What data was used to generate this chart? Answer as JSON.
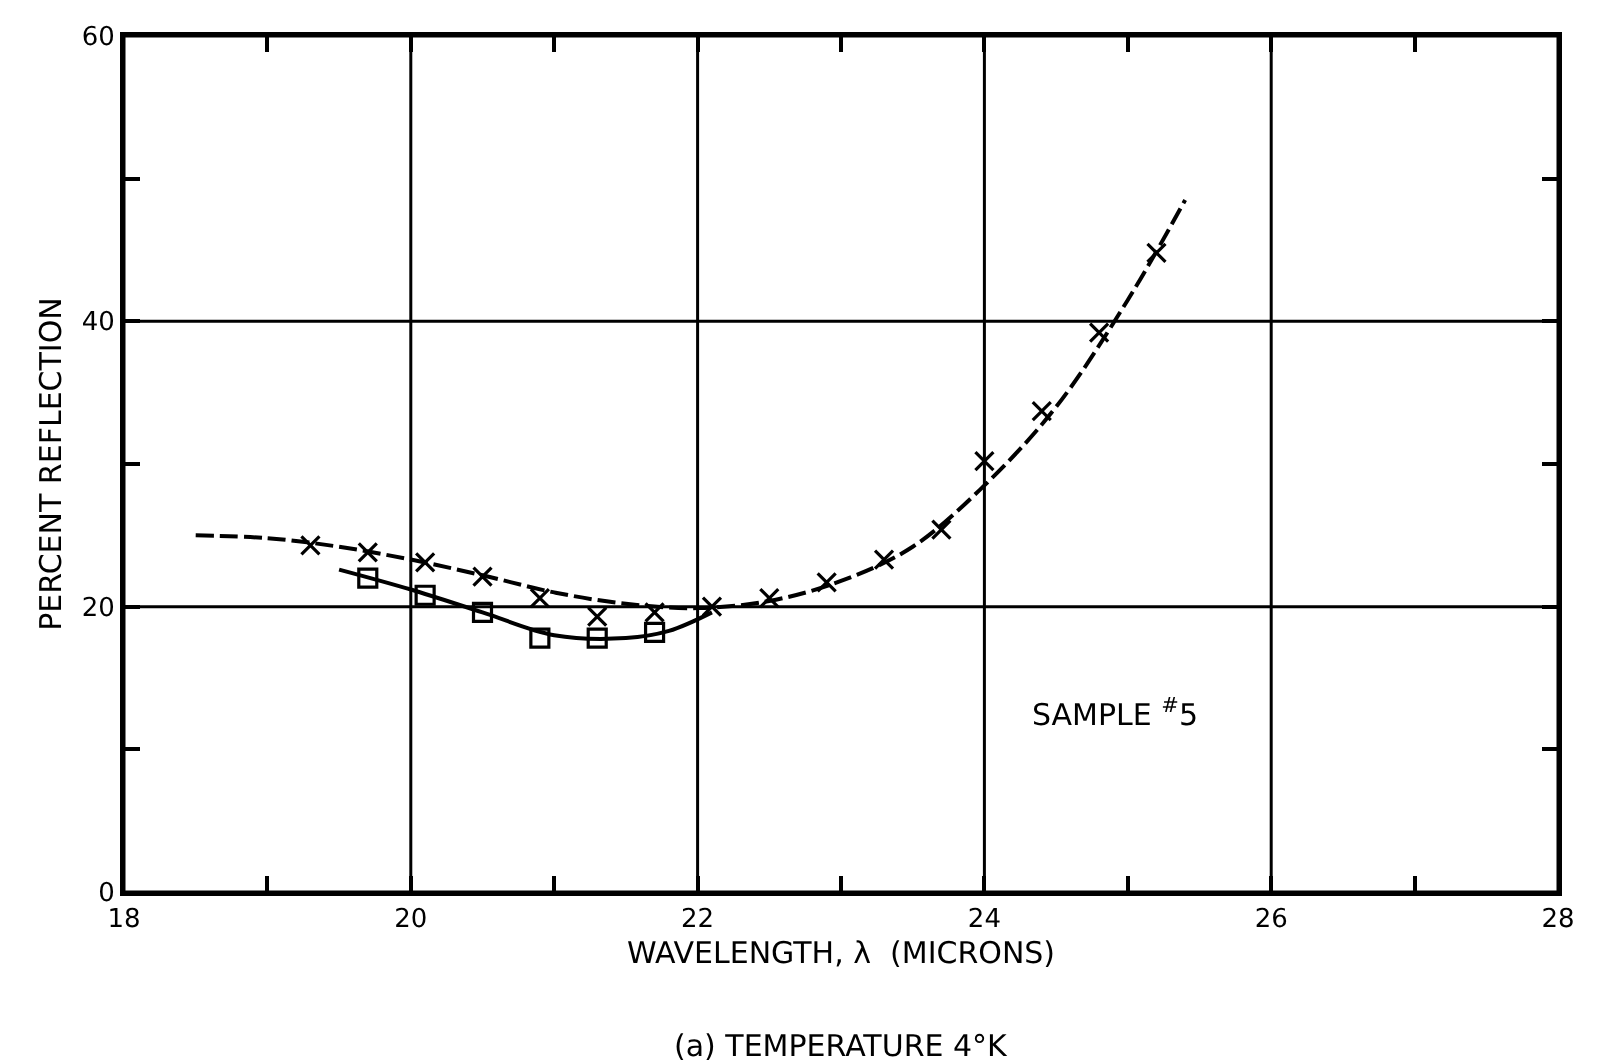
{
  "chart_data": {
    "type": "line",
    "xlabel": "WAVELENGTH, λ  (MICRONS)",
    "ylabel": "PERCENT REFLECTION",
    "xlim": [
      18,
      28
    ],
    "ylim": [
      0,
      60
    ],
    "xticks": [
      18,
      {
        "value": 19,
        "label": null
      },
      20,
      {
        "value": 21,
        "label": null
      },
      22,
      {
        "value": 23,
        "label": null
      },
      24,
      {
        "value": 25,
        "label": null
      },
      26,
      {
        "value": 27,
        "label": null
      },
      28
    ],
    "yticks": [
      0,
      {
        "value": 10,
        "label": null
      },
      20,
      {
        "value": 30,
        "label": null
      },
      40,
      {
        "value": 50,
        "label": null
      },
      60
    ],
    "grid": true,
    "series": [
      {
        "color": "#000000",
        "line_style": "dashed",
        "marker": "none",
        "x": [
          18.5,
          19.0,
          19.5,
          20.0,
          20.5,
          21.0,
          21.5,
          22.0,
          22.5,
          23.0,
          23.5,
          24.0,
          24.5,
          25.0,
          25.4
        ],
        "values": [
          25.0,
          24.8,
          24.2,
          23.3,
          22.2,
          21.0,
          20.2,
          19.9,
          20.4,
          21.8,
          24.2,
          28.5,
          34.0,
          41.5,
          48.5
        ]
      },
      {
        "type": "scatter",
        "color": "#000000",
        "marker": "cross",
        "x": [
          19.3,
          19.7,
          20.1,
          20.5,
          20.9,
          21.3,
          21.7,
          22.1,
          22.5,
          22.9,
          23.3,
          23.7,
          24.0,
          24.4,
          24.8,
          25.2
        ],
        "values": [
          24.3,
          23.8,
          23.1,
          22.1,
          20.6,
          19.3,
          19.6,
          20.0,
          20.6,
          21.7,
          23.3,
          25.4,
          30.2,
          33.7,
          39.2,
          44.8
        ]
      },
      {
        "color": "#000000",
        "line_style": "solid",
        "marker": "none",
        "x": [
          19.5,
          20.0,
          20.5,
          21.0,
          21.5,
          21.8,
          22.1
        ],
        "values": [
          22.6,
          21.2,
          19.6,
          18.0,
          17.8,
          18.3,
          19.6
        ]
      },
      {
        "type": "scatter",
        "color": "#000000",
        "marker": "square",
        "x": [
          19.7,
          20.1,
          20.5,
          20.9,
          21.3,
          21.7
        ],
        "values": [
          22.0,
          20.8,
          19.6,
          17.8,
          17.8,
          18.2
        ]
      }
    ],
    "annotations": [
      "SAMPLE $^{#}$5",
      "(a) TEMPERATURE 4°K"
    ]
  }
}
